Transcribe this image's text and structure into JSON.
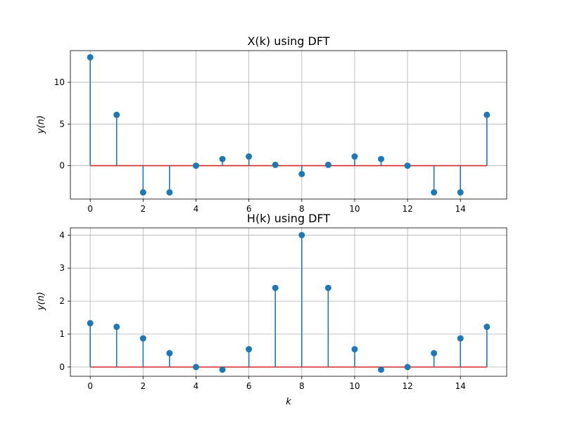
{
  "chart_data": [
    {
      "type": "stem",
      "title": "X(k) using DFT",
      "xlabel": "",
      "ylabel": "y(n)",
      "x": [
        0,
        1,
        2,
        3,
        4,
        5,
        6,
        7,
        8,
        9,
        10,
        11,
        12,
        13,
        14,
        15
      ],
      "values": [
        13,
        6.1,
        -3.2,
        -3.2,
        0,
        0.8,
        1.1,
        0.1,
        -1.0,
        0.1,
        1.1,
        0.8,
        0,
        -3.2,
        -3.2,
        6.1
      ],
      "xlim": [
        -0.75,
        15.75
      ],
      "ylim": [
        -4,
        13.8
      ],
      "xticks": [
        0,
        2,
        4,
        6,
        8,
        10,
        12,
        14
      ],
      "yticks": [
        0,
        5,
        10
      ],
      "grid": true,
      "colors": {
        "stem": "#1f77b4",
        "baseline": "#d62728"
      }
    },
    {
      "type": "stem",
      "title": "H(k) using DFT",
      "xlabel": "k",
      "ylabel": "y(n)",
      "x": [
        0,
        1,
        2,
        3,
        4,
        5,
        6,
        7,
        8,
        9,
        10,
        11,
        12,
        13,
        14,
        15
      ],
      "values": [
        1.33,
        1.22,
        0.87,
        0.42,
        0,
        -0.08,
        0.54,
        2.4,
        4.0,
        2.4,
        0.54,
        -0.08,
        0,
        0.42,
        0.87,
        1.22
      ],
      "xlim": [
        -0.75,
        15.75
      ],
      "ylim": [
        -0.28,
        4.22
      ],
      "xticks": [
        0,
        2,
        4,
        6,
        8,
        10,
        12,
        14
      ],
      "yticks": [
        0,
        1,
        2,
        3,
        4
      ],
      "grid": true,
      "colors": {
        "stem": "#1f77b4",
        "baseline": "#d62728"
      }
    }
  ]
}
